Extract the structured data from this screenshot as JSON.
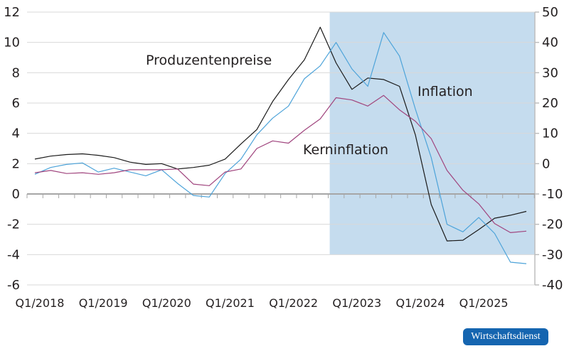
{
  "chart_data": {
    "type": "line",
    "title": "",
    "categories": [
      "Q1/2018",
      "Q2/2018",
      "Q3/2018",
      "Q4/2018",
      "Q1/2019",
      "Q2/2019",
      "Q3/2019",
      "Q4/2019",
      "Q1/2020",
      "Q2/2020",
      "Q3/2020",
      "Q4/2020",
      "Q1/2021",
      "Q2/2021",
      "Q3/2021",
      "Q4/2021",
      "Q1/2022",
      "Q2/2022",
      "Q3/2022",
      "Q4/2022",
      "Q1/2023",
      "Q2/2023",
      "Q3/2023",
      "Q4/2023",
      "Q1/2024",
      "Q2/2024",
      "Q3/2024",
      "Q4/2024",
      "Q1/2025",
      "Q2/2025",
      "Q3/2025",
      "Q4/2025"
    ],
    "x_tick_labels": [
      "Q1/2018",
      "Q1/2019",
      "Q1/2020",
      "Q1/2021",
      "Q1/2022",
      "Q1/2023",
      "Q1/2024",
      "Q1/2025"
    ],
    "y_left": {
      "lim": [
        -6,
        12
      ],
      "ticks": [
        "12",
        "10",
        "8",
        "6",
        "4",
        "2",
        "0",
        "-2",
        "-4",
        "-6"
      ]
    },
    "y_right": {
      "lim": [
        -40,
        50
      ],
      "ticks": [
        "50",
        "40",
        "30",
        "20",
        "10",
        "0",
        "-10",
        "-20",
        "-30",
        "-40"
      ]
    },
    "grid": true,
    "shaded_region": {
      "x_from": "Q3/2022",
      "x_to": "Q4/2025",
      "y_left_range": [
        -4,
        12
      ],
      "color": "#c5dcee"
    },
    "series": [
      {
        "name": "Produzentenpreise",
        "axis": "right",
        "color": "#1a1a1a",
        "values": [
          1.5,
          2.5,
          3,
          3.25,
          2.75,
          2,
          0.5,
          -0.25,
          0,
          -1.75,
          -1.25,
          -0.5,
          1.5,
          6.5,
          11.25,
          20.5,
          27.75,
          34.25,
          45,
          33.25,
          24.5,
          28.25,
          27.75,
          25.5,
          9.5,
          -13.5,
          -25.5,
          -25.25,
          -21.75,
          -18,
          -17,
          -15.75
        ]
      },
      {
        "name": "Inflation",
        "axis": "left",
        "color": "#4da3d9",
        "values": [
          1.3,
          1.75,
          1.95,
          2.05,
          1.45,
          1.7,
          1.45,
          1.2,
          1.6,
          0.7,
          -0.1,
          -0.2,
          1.35,
          2.3,
          3.9,
          5.0,
          5.8,
          7.6,
          8.45,
          10.0,
          8.25,
          7.1,
          10.65,
          9.1,
          5.6,
          2.4,
          -2.0,
          -2.5,
          -1.55,
          -2.6,
          -4.5,
          -4.6
        ]
      },
      {
        "name": "Kerninflation",
        "axis": "left",
        "color": "#a0457e",
        "values": [
          1.4,
          1.55,
          1.35,
          1.4,
          1.3,
          1.4,
          1.6,
          1.6,
          1.6,
          1.65,
          0.65,
          0.55,
          1.45,
          1.65,
          3.0,
          3.5,
          3.35,
          4.2,
          4.95,
          6.35,
          6.2,
          5.8,
          6.5,
          5.55,
          4.8,
          3.65,
          1.55,
          0.25,
          -0.65,
          -1.95,
          -2.55,
          -2.45
        ]
      }
    ],
    "annotations": {
      "producer": "Produzentenpreise",
      "inflation": "Inflation",
      "core": "Kerninflation"
    }
  },
  "badge": {
    "label": "Wirtschaftsdienst",
    "color": "#1565b0"
  }
}
